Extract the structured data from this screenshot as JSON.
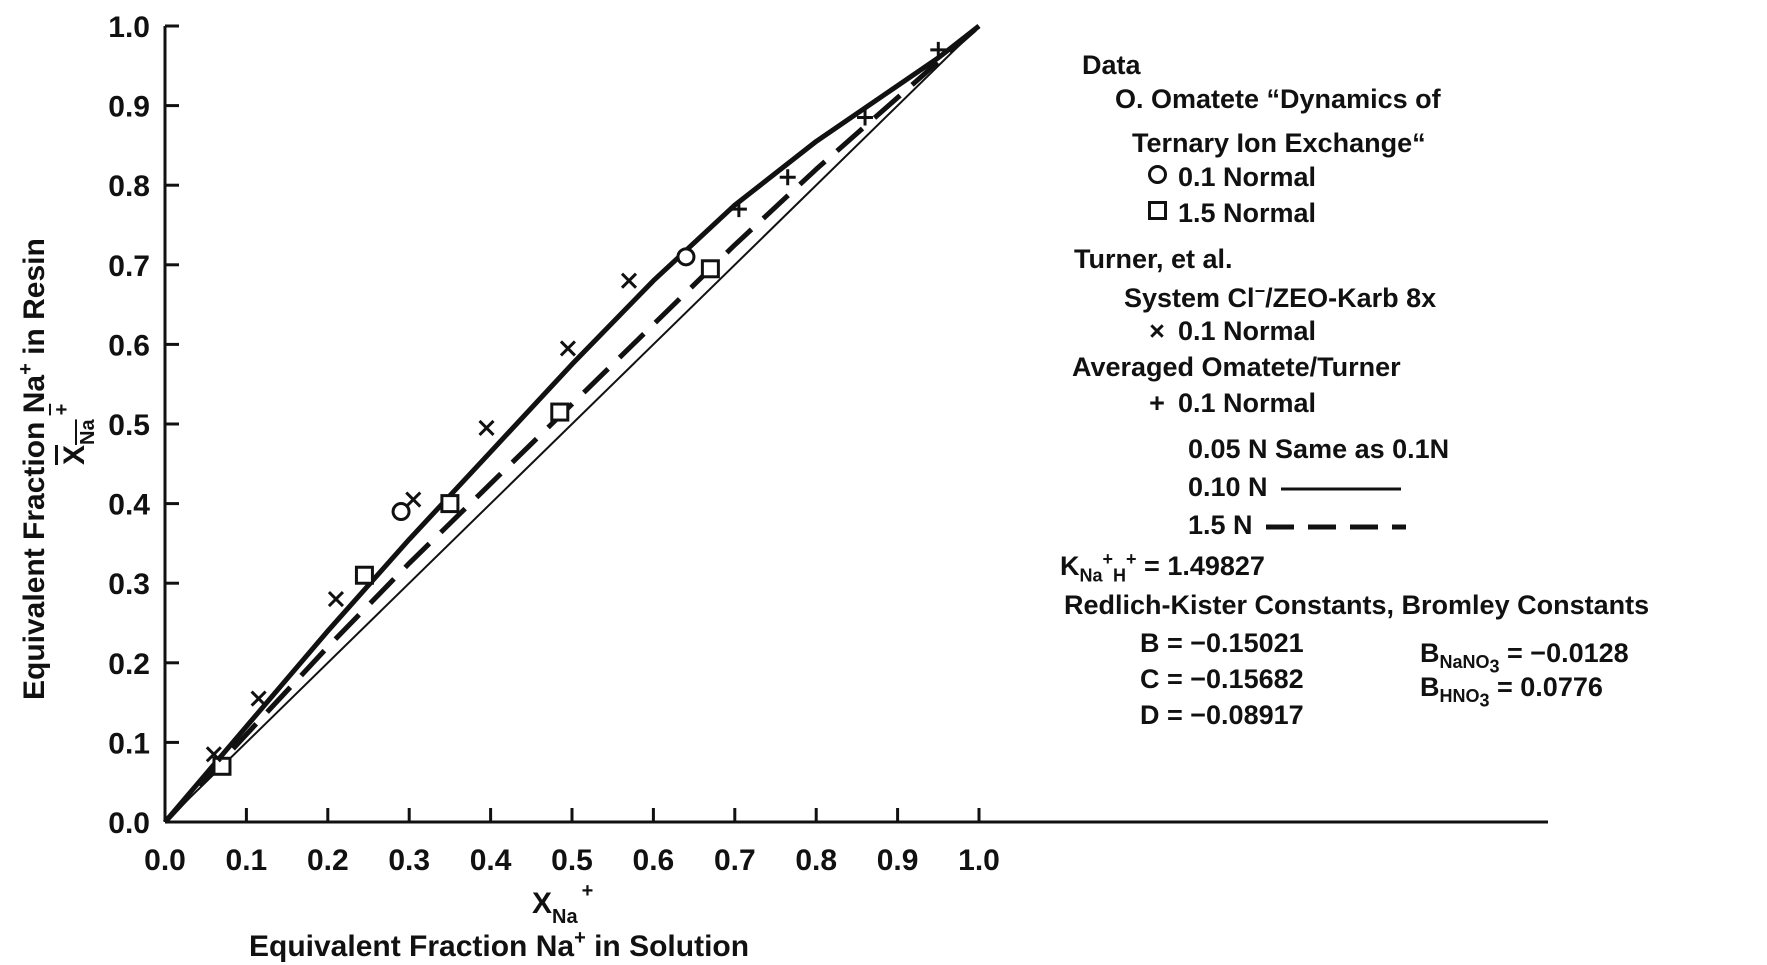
{
  "chart_data": {
    "type": "line",
    "xlabel_symbol": "X",
    "xlabel_symbol_sub": "Na",
    "xlabel_symbol_sup": "+",
    "xlabel": "Equivalent Fraction Na",
    "xlabel_sup": "+",
    "xlabel_suffix": " in Solution",
    "ylabel_symbol": "X",
    "ylabel_symbol_sub": "Na",
    "ylabel_symbol_sup": "+",
    "ylabel": "Equivalent Fraction Na",
    "ylabel_sup": "+",
    "ylabel_suffix": " in Resin",
    "xlim": [
      0,
      1.0
    ],
    "ylim": [
      0,
      1.0
    ],
    "xticks": [
      "0.0",
      "0.1",
      "0.2",
      "0.3",
      "0.4",
      "0.5",
      "0.6",
      "0.7",
      "0.8",
      "0.9",
      "1.0"
    ],
    "yticks": [
      "0.0",
      "0.1",
      "0.2",
      "0.3",
      "0.4",
      "0.5",
      "0.6",
      "0.7",
      "0.8",
      "0.9",
      "1.0"
    ],
    "series": [
      {
        "name": "0.10 N",
        "style": "solid",
        "x": [
          0,
          0.1,
          0.2,
          0.3,
          0.4,
          0.5,
          0.6,
          0.7,
          0.8,
          0.9,
          0.95,
          1.0
        ],
        "y": [
          0,
          0.12,
          0.24,
          0.355,
          0.465,
          0.575,
          0.68,
          0.775,
          0.855,
          0.925,
          0.96,
          1.0
        ]
      },
      {
        "name": "1.5 N",
        "style": "dashed",
        "x": [
          0,
          0.1,
          0.2,
          0.3,
          0.4,
          0.5,
          0.6,
          0.7,
          0.8,
          0.9,
          0.95,
          1.0
        ],
        "y": [
          0,
          0.11,
          0.22,
          0.325,
          0.425,
          0.525,
          0.625,
          0.725,
          0.82,
          0.91,
          0.955,
          1.0
        ]
      },
      {
        "name": "diagonal",
        "style": "thin",
        "x": [
          0,
          1.0
        ],
        "y": [
          0,
          1.0
        ]
      }
    ],
    "points": [
      {
        "set": "0.1 Normal (Omatete)",
        "marker": "circle",
        "x": [
          0.29,
          0.64
        ],
        "y": [
          0.39,
          0.71
        ]
      },
      {
        "set": "1.5 Normal (Omatete)",
        "marker": "square",
        "x": [
          0.07,
          0.245,
          0.35,
          0.485,
          0.67
        ],
        "y": [
          0.07,
          0.31,
          0.4,
          0.515,
          0.695
        ]
      },
      {
        "set": "0.1 Normal (Turner)",
        "marker": "x",
        "x": [
          0.06,
          0.115,
          0.21,
          0.305,
          0.395,
          0.495,
          0.57
        ],
        "y": [
          0.085,
          0.155,
          0.28,
          0.405,
          0.495,
          0.595,
          0.68
        ]
      },
      {
        "set": "0.1 Normal (Averaged)",
        "marker": "plus",
        "x": [
          0.705,
          0.765,
          0.86,
          0.95
        ],
        "y": [
          0.77,
          0.81,
          0.885,
          0.97
        ]
      }
    ],
    "grid": false
  },
  "legend": {
    "data_heading": "Data",
    "omatete_title_1": "O. Omatete “Dynamics of",
    "omatete_title_2": "Ternary Ion Exchange“",
    "omatete_01": "0.1 Normal",
    "omatete_15": "1.5 Normal",
    "turner_heading": "Turner, et al.",
    "turner_system_a": "System Cl",
    "turner_system_sup": "−",
    "turner_system_b": "/ZEO-Karb 8x",
    "turner_01": "0.1 Normal",
    "sym_x": "×",
    "averaged_heading": "Averaged Omatete/Turner",
    "averaged_01": "0.1 Normal",
    "sym_plus": "+",
    "same_note": "0.05 N Same as 0.1N",
    "line_010": "0.10 N",
    "line_15": "1.5 N",
    "k_label": "K",
    "k_sub1": "Na",
    "k_sup1": "+",
    "k_sub2": "H",
    "k_sup2": "+",
    "k_value": " = 1.49827",
    "constants_heading": "Redlich-Kister Constants, Bromley Constants",
    "b_const": "B = −0.15021",
    "c_const": "C = −0.15682",
    "d_const": "D = −0.08917",
    "bnano3_label": "B",
    "bnano3_sub": "NaNO",
    "bnano3_sub3": "3",
    "bnano3_value": " = −0.0128",
    "bhno3_label": "B",
    "bhno3_sub": "HNO",
    "bhno3_sub3": "3",
    "bhno3_value": " = 0.0776"
  }
}
